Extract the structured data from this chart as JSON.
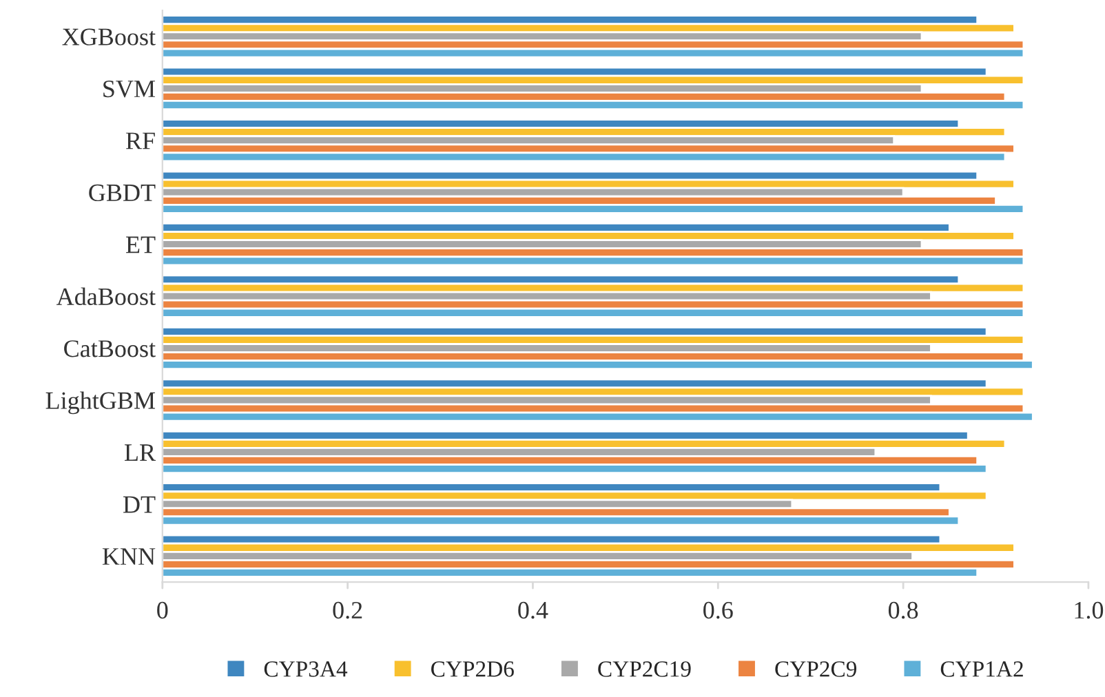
{
  "chart_data": {
    "type": "bar",
    "orientation": "horizontal",
    "categories": [
      "XGBoost",
      "SVM",
      "RF",
      "GBDT",
      "ET",
      "AdaBoost",
      "CatBoost",
      "LightGBM",
      "LR",
      "DT",
      "KNN"
    ],
    "series": [
      {
        "name": "CYP3A4",
        "color": "#3f87c0",
        "values": [
          0.88,
          0.89,
          0.86,
          0.88,
          0.85,
          0.86,
          0.89,
          0.89,
          0.87,
          0.84,
          0.84
        ]
      },
      {
        "name": "CYP2D6",
        "color": "#f8c02e",
        "values": [
          0.92,
          0.93,
          0.91,
          0.92,
          0.92,
          0.93,
          0.93,
          0.93,
          0.91,
          0.89,
          0.92
        ]
      },
      {
        "name": "CYP2C19",
        "color": "#a9a9a9",
        "values": [
          0.82,
          0.82,
          0.79,
          0.8,
          0.82,
          0.83,
          0.83,
          0.83,
          0.77,
          0.68,
          0.81
        ]
      },
      {
        "name": "CYP2C9",
        "color": "#ec8441",
        "values": [
          0.93,
          0.91,
          0.92,
          0.9,
          0.93,
          0.93,
          0.93,
          0.93,
          0.88,
          0.85,
          0.92
        ]
      },
      {
        "name": "CYP1A2",
        "color": "#5eb0d8",
        "values": [
          0.93,
          0.93,
          0.91,
          0.93,
          0.93,
          0.93,
          0.94,
          0.94,
          0.89,
          0.86,
          0.88
        ]
      }
    ],
    "xlim": [
      0,
      1
    ],
    "xticks": [
      0,
      0.2,
      0.4,
      0.6,
      0.8,
      {
        "value": 1,
        "label": "1.0"
      }
    ],
    "grid": false,
    "legend": "bottom"
  }
}
